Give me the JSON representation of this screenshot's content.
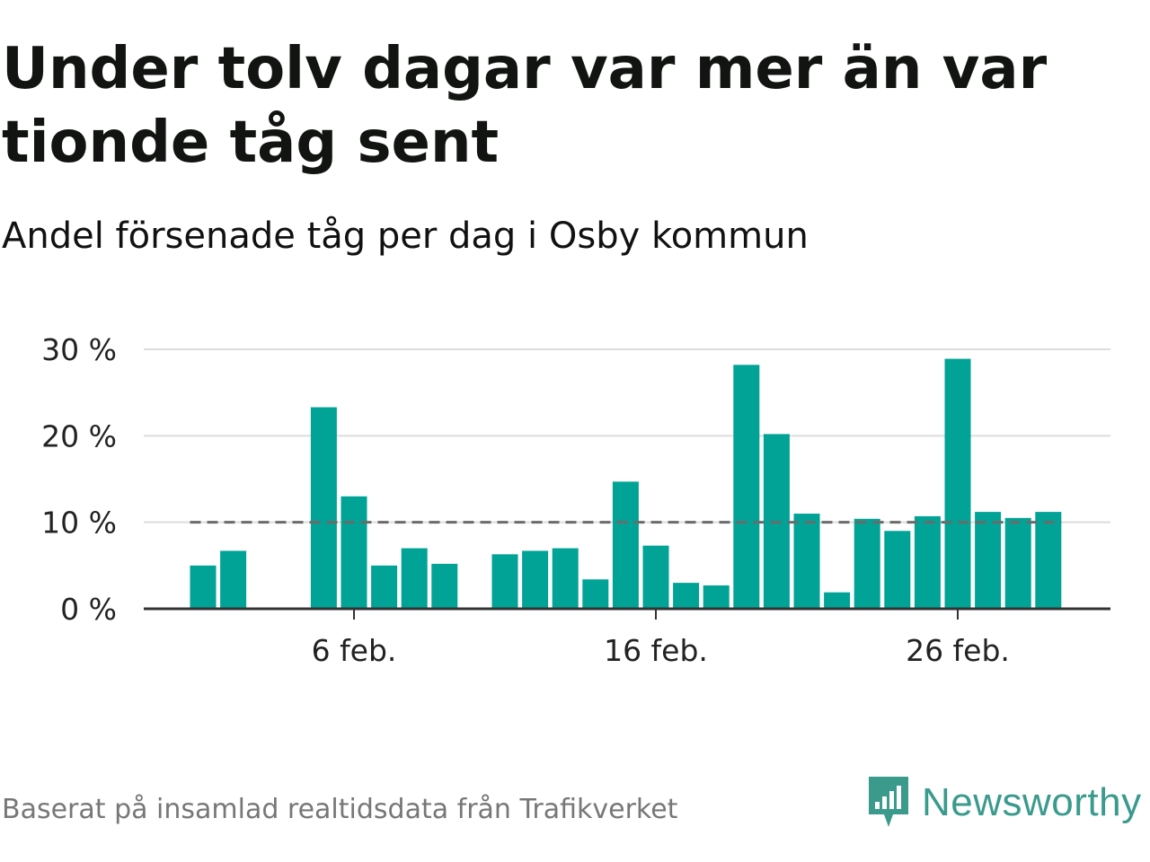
{
  "title": "Under tolv dagar var mer än var tionde tåg sent",
  "subtitle": "Andel försenade tåg per dag i Osby kommun",
  "footer": "Baserat på insamlad realtidsdata från Trafikverket",
  "brand": "Newsworthy",
  "colors": {
    "bar": "#00a396",
    "reference": "#6b6b6b",
    "brand": "#3a9a8c"
  },
  "chart_data": {
    "type": "bar",
    "x": [
      "2024-02-01",
      "2024-02-02",
      "2024-02-03",
      "2024-02-04",
      "2024-02-05",
      "2024-02-06",
      "2024-02-07",
      "2024-02-08",
      "2024-02-09",
      "2024-02-10",
      "2024-02-11",
      "2024-02-12",
      "2024-02-13",
      "2024-02-14",
      "2024-02-15",
      "2024-02-16",
      "2024-02-17",
      "2024-02-18",
      "2024-02-19",
      "2024-02-20",
      "2024-02-21",
      "2024-02-22",
      "2024-02-23",
      "2024-02-24",
      "2024-02-25",
      "2024-02-26",
      "2024-02-27",
      "2024-02-28",
      "2024-02-29"
    ],
    "values": [
      5.0,
      6.7,
      null,
      null,
      23.3,
      13.0,
      5.0,
      7.0,
      5.2,
      null,
      6.3,
      6.7,
      7.0,
      3.4,
      14.7,
      7.3,
      3.0,
      2.7,
      28.2,
      20.2,
      11.0,
      1.9,
      10.4,
      9.0,
      10.7,
      28.9,
      11.2,
      10.5,
      11.2
    ],
    "yticks": [
      "0 %",
      "10 %",
      "20 %",
      "30 %"
    ],
    "ylim": [
      0,
      30
    ],
    "xticks": [
      "6 feb.",
      "16 feb.",
      "26 feb."
    ],
    "reference_line": 10,
    "grid": true
  }
}
